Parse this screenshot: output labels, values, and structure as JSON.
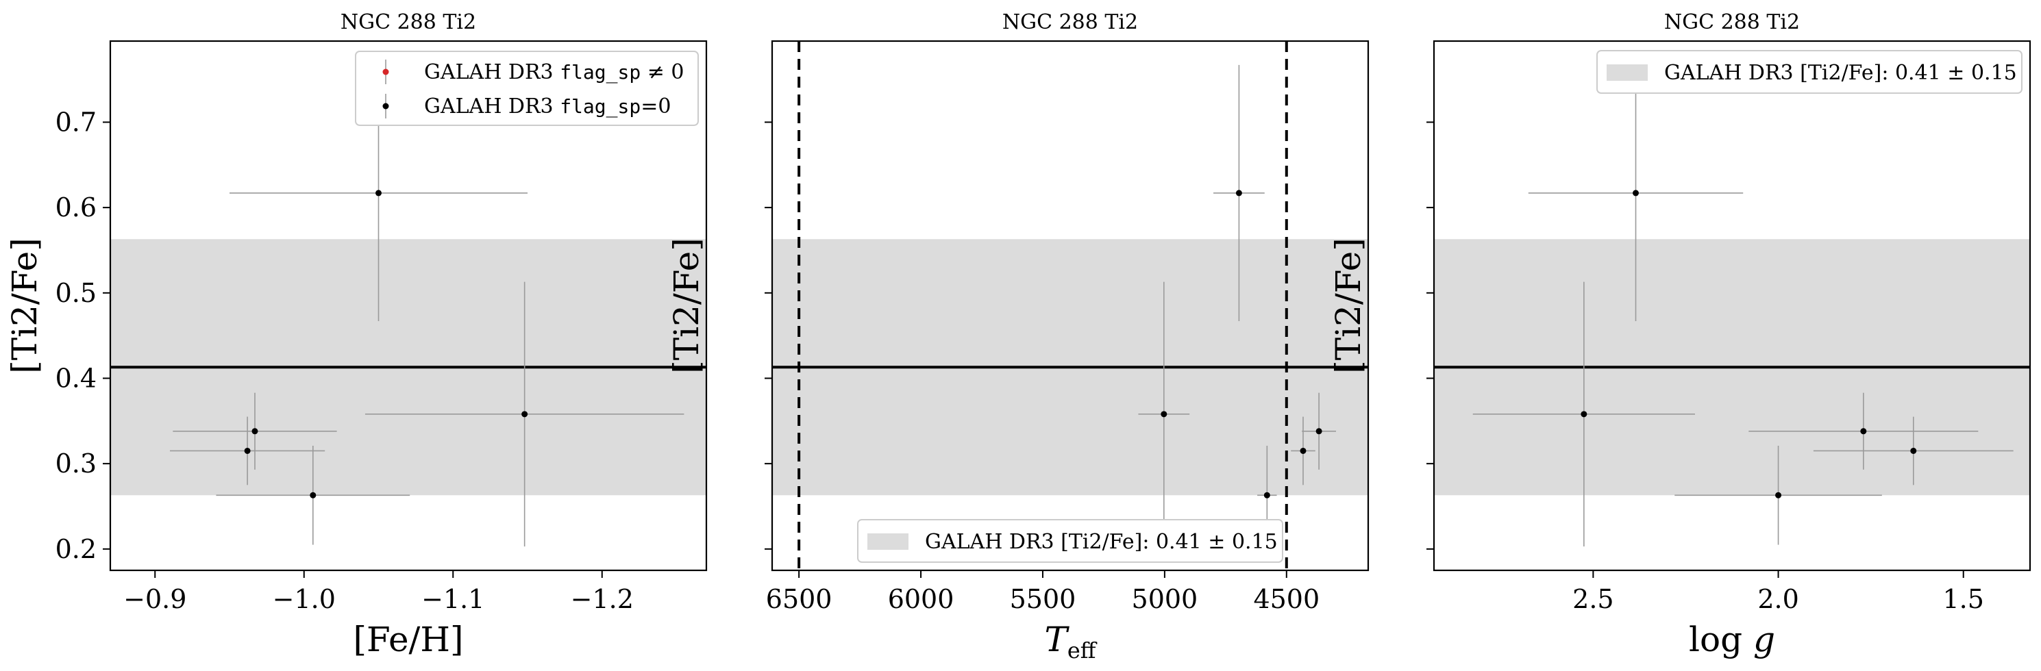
{
  "colors": {
    "band": "#dcdcdc",
    "errorbar": "#9a9a9a",
    "point": "#000000",
    "flag_point": "#d62728",
    "mean_line": "#000000"
  },
  "chart_data": [
    {
      "type": "scatter",
      "title": "NGC 288 Ti2",
      "xlabel": "[Fe/H]",
      "ylabel": "[Ti2/Fe]",
      "xlim": [
        -0.87,
        -1.27
      ],
      "ylim": [
        0.175,
        0.795
      ],
      "xticks": [
        -0.9,
        -1.0,
        -1.1,
        -1.2
      ],
      "xtick_labels": [
        "−0.9",
        "−1.0",
        "−1.1",
        "−1.2"
      ],
      "yticks": [
        0.2,
        0.3,
        0.4,
        0.5,
        0.6,
        0.7
      ],
      "ytick_labels": [
        "0.2",
        "0.3",
        "0.4",
        "0.5",
        "0.6",
        "0.7"
      ],
      "mean": 0.413,
      "band": [
        0.263,
        0.563
      ],
      "legend": {
        "position": "upper right",
        "entries": [
          {
            "prefix": "GALAH DR3 ",
            "code": "flag_sp",
            "suffix": " ≠ 0",
            "color": "#d62728"
          },
          {
            "prefix": "GALAH DR3 ",
            "code": "flag_sp",
            "suffix": "=0",
            "color": "#000000"
          }
        ]
      },
      "points": [
        {
          "x": -0.962,
          "y": 0.315,
          "xerr": 0.052,
          "yerr": 0.04
        },
        {
          "x": -0.967,
          "y": 0.338,
          "xerr": 0.055,
          "yerr": 0.045
        },
        {
          "x": -1.006,
          "y": 0.263,
          "xerr": 0.065,
          "yerr": 0.058
        },
        {
          "x": -1.05,
          "y": 0.617,
          "xerr": 0.1,
          "yerr": 0.15
        },
        {
          "x": -1.148,
          "y": 0.358,
          "xerr": 0.107,
          "yerr": 0.155
        }
      ]
    },
    {
      "type": "scatter",
      "title": "NGC 288 Ti2",
      "xlabel": "T_eff",
      "ylabel": "[Ti2/Fe]",
      "xlim": [
        6610,
        4165
      ],
      "ylim": [
        0.175,
        0.795
      ],
      "xticks": [
        6500,
        6000,
        5500,
        5000,
        4500
      ],
      "xtick_labels": [
        "6500",
        "6000",
        "5500",
        "5000",
        "4500"
      ],
      "yticks": [
        0.2,
        0.3,
        0.4,
        0.5,
        0.6,
        0.7
      ],
      "vlines": [
        6500,
        4500
      ],
      "mean": 0.413,
      "band": [
        0.263,
        0.563
      ],
      "legend": {
        "position": "lower center",
        "entries": [
          {
            "text": "GALAH DR3 [Ti2/Fe]: 0.41 ± 0.15"
          }
        ]
      },
      "points": [
        {
          "x": 4695,
          "y": 0.617,
          "xerr": 105,
          "yerr": 0.15
        },
        {
          "x": 5003,
          "y": 0.358,
          "xerr": 105,
          "yerr": 0.155
        },
        {
          "x": 4580,
          "y": 0.263,
          "xerr": 40,
          "yerr": 0.058
        },
        {
          "x": 4432,
          "y": 0.315,
          "xerr": 50,
          "yerr": 0.04
        },
        {
          "x": 4367,
          "y": 0.338,
          "xerr": 70,
          "yerr": 0.045
        }
      ]
    },
    {
      "type": "scatter",
      "title": "NGC 288 Ti2",
      "xlabel": "log g",
      "ylabel": "[Ti2/Fe]",
      "xlim": [
        2.93,
        1.32
      ],
      "ylim": [
        0.175,
        0.795
      ],
      "xticks": [
        2.5,
        2.0,
        1.5
      ],
      "xtick_labels": [
        "2.5",
        "2.0",
        "1.5"
      ],
      "yticks": [
        0.2,
        0.3,
        0.4,
        0.5,
        0.6,
        0.7
      ],
      "mean": 0.413,
      "band": [
        0.263,
        0.563
      ],
      "legend": {
        "position": "upper right",
        "entries": [
          {
            "text": "GALAH DR3 [Ti2/Fe]: 0.41 ± 0.15"
          }
        ]
      },
      "points": [
        {
          "x": 2.385,
          "y": 0.617,
          "xerr": 0.29,
          "yerr": 0.15
        },
        {
          "x": 2.525,
          "y": 0.358,
          "xerr": 0.3,
          "yerr": 0.155
        },
        {
          "x": 2.0,
          "y": 0.263,
          "xerr": 0.28,
          "yerr": 0.058
        },
        {
          "x": 1.77,
          "y": 0.338,
          "xerr": 0.31,
          "yerr": 0.045
        },
        {
          "x": 1.635,
          "y": 0.315,
          "xerr": 0.27,
          "yerr": 0.04
        }
      ]
    }
  ]
}
